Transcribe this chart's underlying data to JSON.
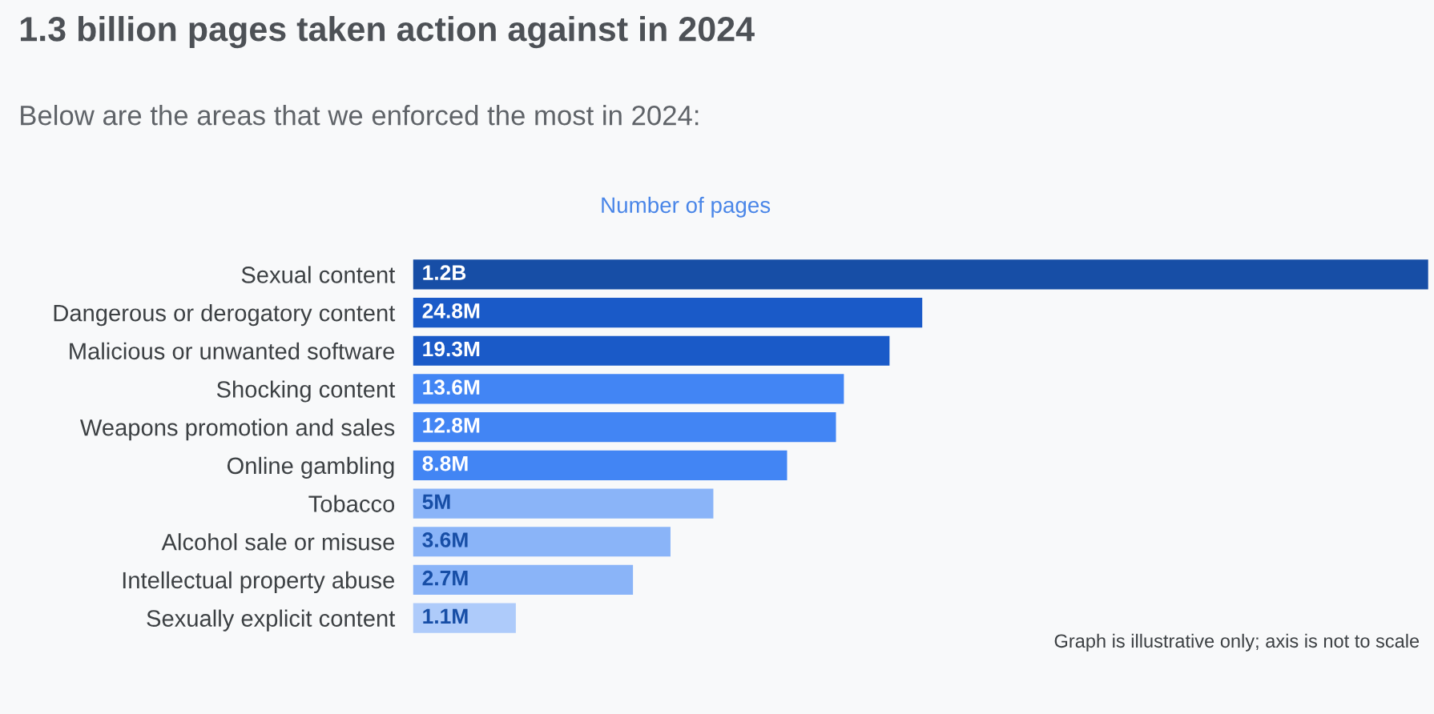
{
  "chart_data": {
    "type": "bar",
    "orientation": "horizontal",
    "title": "1.3 billion pages taken action against in 2024",
    "subtitle": "Below are the areas that we enforced the most in 2024:",
    "xlabel": "Number of pages",
    "categories": [
      "Sexual content",
      "Dangerous or derogatory content",
      "Malicious or unwanted software",
      "Shocking content",
      "Weapons promotion and sales",
      "Online gambling",
      "Tobacco",
      "Alcohol sale or misuse",
      "Intellectual property abuse",
      "Sexually explicit content"
    ],
    "values": [
      1200000000,
      24800000,
      19300000,
      13600000,
      12800000,
      8800000,
      5000000,
      3600000,
      2700000,
      1100000
    ],
    "value_labels": [
      "1.2B",
      "24.8M",
      "19.3M",
      "13.6M",
      "12.8M",
      "8.8M",
      "5M",
      "3.6M",
      "2.7M",
      "1.1M"
    ],
    "colors": [
      "#174ea6",
      "#1a5ac8",
      "#1a5ac8",
      "#4285f4",
      "#4285f4",
      "#4285f4",
      "#8ab4f8",
      "#8ab4f8",
      "#8ab4f8",
      "#aecbfa"
    ],
    "log": "x",
    "xlim": [
      500000,
      1200000000
    ],
    "tick_labels": "y",
    "annotations": [
      "Graph is illustrative only; axis is not to scale"
    ]
  }
}
